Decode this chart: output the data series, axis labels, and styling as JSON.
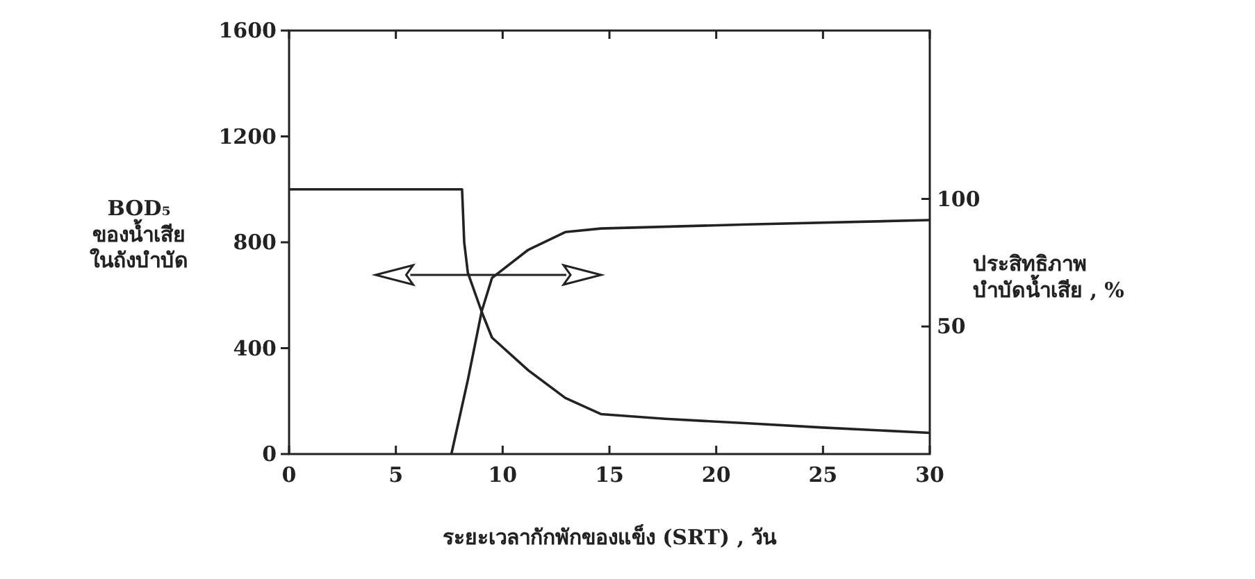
{
  "chart_data": {
    "type": "line",
    "xlabel": "ระยะเวลากักพักของแข็ง (SRT) , วัน",
    "ylabel": "BOD₅\nของน้ำเสีย\nในถังบำบัด",
    "y2label": "ประสิทธิภาพ\nบำบัดน้ำเสีย , %",
    "xlim": [
      0,
      30
    ],
    "xticks": [
      0,
      5,
      10,
      15,
      20,
      25,
      30
    ],
    "ylim": [
      0,
      1600
    ],
    "yticks": [
      0,
      400,
      800,
      1200,
      1600
    ],
    "y2lim": [
      0,
      166
    ],
    "y2ticks": [
      50,
      100
    ],
    "grid": false,
    "marker": "none",
    "line_style": "solid",
    "series": [
      {
        "color": "#222222",
        "axis": "y",
        "x": [
          0,
          8.1,
          8.2,
          8.37,
          9.02,
          9.5,
          11.19,
          12.93,
          14.6,
          17.6,
          21.5,
          25,
          30
        ],
        "values": [
          1000,
          1000,
          800,
          685,
          537,
          440,
          317,
          212,
          151,
          133,
          116,
          100,
          80
        ]
      },
      {
        "color": "#222222",
        "axis": "y2",
        "x": [
          7.6,
          8.37,
          9.02,
          9.5,
          11.19,
          12.93,
          14.6,
          21.5,
          30
        ],
        "values": [
          0,
          29,
          56,
          69,
          80,
          87,
          88.4,
          90,
          91.7
        ]
      }
    ]
  }
}
